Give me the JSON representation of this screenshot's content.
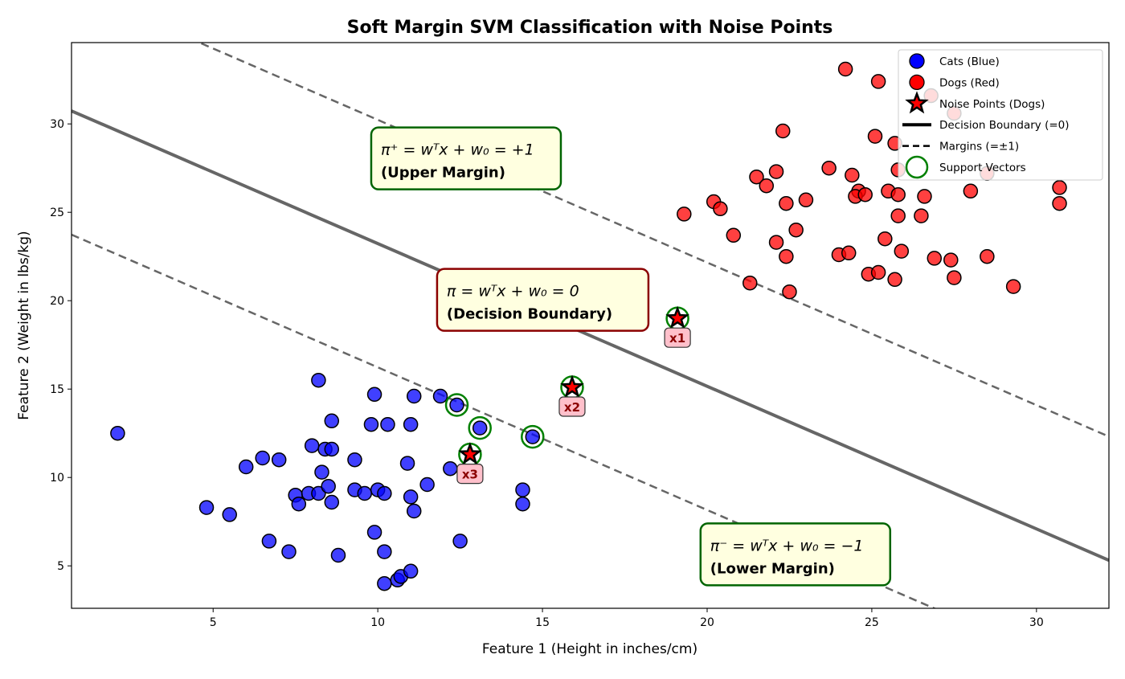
{
  "chart_data": {
    "type": "scatter",
    "title": "Soft Margin SVM Classification with Noise Points",
    "xlabel": "Feature 1 (Height in inches/cm)",
    "ylabel": "Feature 2 (Weight in lbs/kg)",
    "xlim": [
      0.7,
      32.2
    ],
    "ylim": [
      2.6,
      34.6
    ],
    "xticks": [
      5,
      10,
      15,
      20,
      25,
      30
    ],
    "yticks": [
      5,
      10,
      15,
      20,
      25,
      30
    ],
    "grid": false,
    "legend_placement": "top-right",
    "colors": {
      "cats": "#0000ff",
      "dogs": "#ff0000",
      "support": "#008000",
      "lines": "#555555",
      "annot_green": "#006400",
      "annot_red": "#8b0000",
      "annot_fill": "#ffffe0",
      "label_fill": "#ffc0cb"
    },
    "series": [
      {
        "name": "Cats (Blue)",
        "marker": "circle",
        "points": [
          [
            2.1,
            12.5
          ],
          [
            4.8,
            8.3
          ],
          [
            5.5,
            7.9
          ],
          [
            6.0,
            10.6
          ],
          [
            6.5,
            11.1
          ],
          [
            7.0,
            11.0
          ],
          [
            6.7,
            6.4
          ],
          [
            7.3,
            5.8
          ],
          [
            7.5,
            9.0
          ],
          [
            7.6,
            8.5
          ],
          [
            7.9,
            9.1
          ],
          [
            8.0,
            11.8
          ],
          [
            8.2,
            9.1
          ],
          [
            8.2,
            15.5
          ],
          [
            8.3,
            10.3
          ],
          [
            8.4,
            11.6
          ],
          [
            8.6,
            11.6
          ],
          [
            8.5,
            9.5
          ],
          [
            8.6,
            13.2
          ],
          [
            8.6,
            8.6
          ],
          [
            8.8,
            5.6
          ],
          [
            9.3,
            11.0
          ],
          [
            9.3,
            9.3
          ],
          [
            9.6,
            9.1
          ],
          [
            9.8,
            13.0
          ],
          [
            9.9,
            14.7
          ],
          [
            10.0,
            9.3
          ],
          [
            10.2,
            9.1
          ],
          [
            9.9,
            6.9
          ],
          [
            10.2,
            5.8
          ],
          [
            10.3,
            13.0
          ],
          [
            10.2,
            4.0
          ],
          [
            10.6,
            4.2
          ],
          [
            10.7,
            4.4
          ],
          [
            11.0,
            4.7
          ],
          [
            11.0,
            13.0
          ],
          [
            11.1,
            14.6
          ],
          [
            10.9,
            10.8
          ],
          [
            11.0,
            8.9
          ],
          [
            11.1,
            8.1
          ],
          [
            11.5,
            9.6
          ],
          [
            11.9,
            14.6
          ],
          [
            12.2,
            10.5
          ],
          [
            12.4,
            14.1
          ],
          [
            12.5,
            6.4
          ],
          [
            13.1,
            12.8
          ],
          [
            14.4,
            9.3
          ],
          [
            14.4,
            8.5
          ],
          [
            14.7,
            12.3
          ]
        ]
      },
      {
        "name": "Dogs (Red)",
        "marker": "circle",
        "points": [
          [
            24.2,
            33.1
          ],
          [
            25.2,
            32.4
          ],
          [
            22.3,
            29.6
          ],
          [
            25.1,
            29.3
          ],
          [
            25.7,
            28.9
          ],
          [
            22.1,
            27.3
          ],
          [
            21.5,
            27.0
          ],
          [
            21.8,
            26.5
          ],
          [
            23.7,
            27.5
          ],
          [
            24.4,
            27.1
          ],
          [
            25.8,
            27.4
          ],
          [
            20.2,
            25.6
          ],
          [
            20.4,
            25.2
          ],
          [
            19.3,
            24.9
          ],
          [
            22.4,
            25.5
          ],
          [
            23.0,
            25.7
          ],
          [
            24.6,
            26.2
          ],
          [
            24.5,
            25.9
          ],
          [
            24.8,
            26.0
          ],
          [
            25.5,
            26.2
          ],
          [
            25.8,
            26.0
          ],
          [
            26.6,
            25.9
          ],
          [
            28.0,
            26.2
          ],
          [
            30.7,
            26.4
          ],
          [
            30.7,
            25.5
          ],
          [
            25.8,
            24.8
          ],
          [
            26.5,
            24.8
          ],
          [
            20.8,
            23.7
          ],
          [
            22.7,
            24.0
          ],
          [
            22.1,
            23.3
          ],
          [
            22.4,
            22.5
          ],
          [
            25.4,
            23.5
          ],
          [
            25.9,
            22.8
          ],
          [
            24.0,
            22.6
          ],
          [
            24.3,
            22.7
          ],
          [
            26.9,
            22.4
          ],
          [
            27.4,
            22.3
          ],
          [
            28.5,
            22.5
          ],
          [
            24.9,
            21.5
          ],
          [
            25.2,
            21.6
          ],
          [
            25.7,
            21.2
          ],
          [
            27.5,
            21.3
          ],
          [
            29.3,
            20.8
          ],
          [
            21.3,
            21.0
          ],
          [
            22.5,
            20.5
          ],
          [
            27.5,
            30.6
          ],
          [
            26.8,
            31.6
          ],
          [
            28.5,
            27.2
          ]
        ]
      },
      {
        "name": "Noise Points (Dogs)",
        "marker": "star",
        "points": [
          [
            19.1,
            19.0
          ],
          [
            15.9,
            15.1
          ],
          [
            12.8,
            11.3
          ]
        ],
        "labels": [
          "x1",
          "x2",
          "x3"
        ]
      },
      {
        "name": "Support Vectors",
        "marker": "ring",
        "points": [
          [
            12.4,
            14.1
          ],
          [
            13.1,
            12.8
          ],
          [
            14.7,
            12.3
          ],
          [
            12.8,
            11.3
          ],
          [
            15.9,
            15.1
          ],
          [
            19.1,
            19.0
          ]
        ]
      }
    ],
    "lines": [
      {
        "name": "Decision Boundary (=0)",
        "style": "solid",
        "slope": -0.807,
        "intercept": 31.3
      },
      {
        "name": "Margins (=±1)",
        "style": "dashed",
        "slope": -0.807,
        "intercept": 38.3
      },
      {
        "style": "dashed",
        "slope": -0.807,
        "intercept": 24.3
      }
    ],
    "annotations": [
      {
        "eq": "π⁺ = wᵀx + w₀ = +1",
        "label": "(Upper Margin)",
        "x": 9.8,
        "y": 29.8,
        "border": "#006400"
      },
      {
        "eq": "π = wᵀx + w₀ = 0",
        "label": "(Decision Boundary)",
        "x": 11.8,
        "y": 21.8,
        "border": "#8b0000"
      },
      {
        "eq": "π⁻ = wᵀx + w₀ = −1",
        "label": "(Lower Margin)",
        "x": 19.8,
        "y": 7.4,
        "border": "#006400"
      }
    ]
  }
}
